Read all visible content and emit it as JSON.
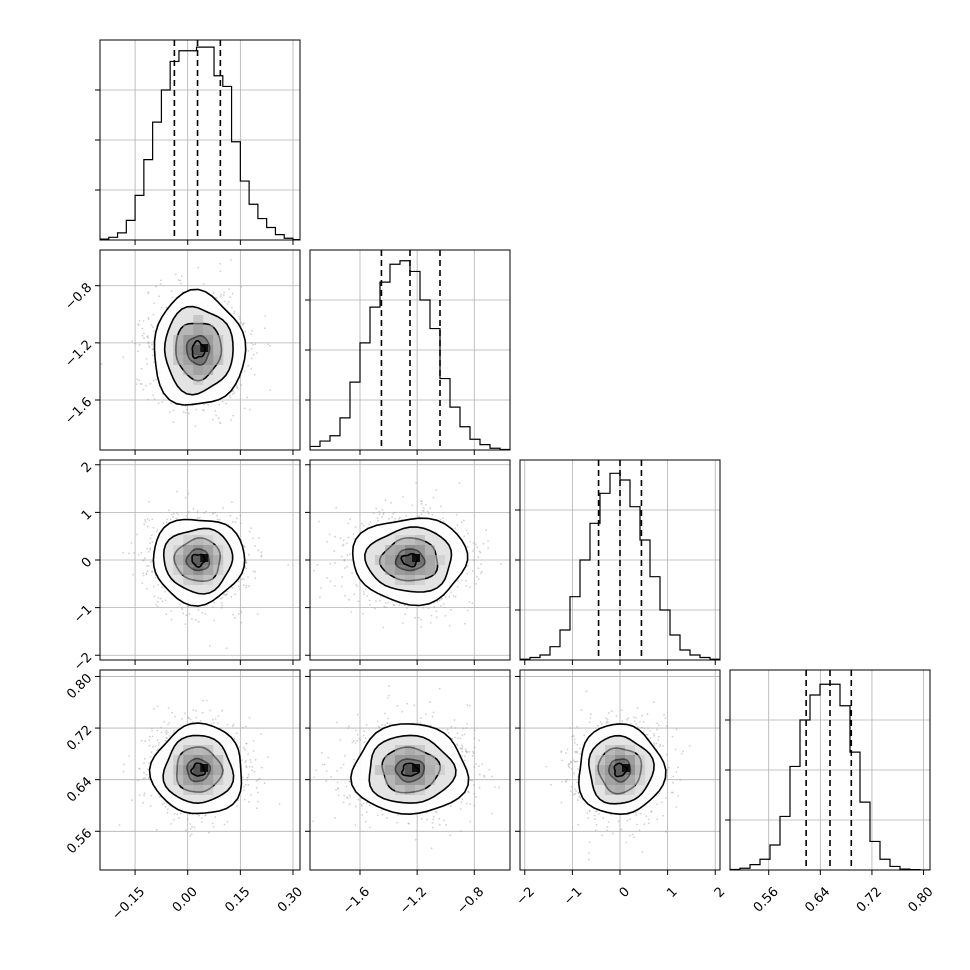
{
  "figure": {
    "type": "corner-plot",
    "grid_color": "#b0b0b0",
    "hist_color": "#000000",
    "scatter_color": "#9a9a9a",
    "contour_color": "#000000",
    "quantile_line": "dashed"
  },
  "chart_data": [
    {
      "type": "histogram",
      "panel": "diag-0",
      "param_index": 0,
      "xlim": [
        -0.25,
        0.32
      ],
      "xticks": [
        -0.15,
        0.0,
        0.15,
        0.3
      ],
      "xtick_labels": [
        "",
        "",
        "",
        ""
      ],
      "bin_edges": [
        -0.25,
        -0.225,
        -0.2,
        -0.175,
        -0.15,
        -0.125,
        -0.1,
        -0.075,
        -0.05,
        -0.025,
        0.0,
        0.025,
        0.05,
        0.075,
        0.1,
        0.125,
        0.15,
        0.175,
        0.2,
        0.225,
        0.25,
        0.275,
        0.3,
        0.32
      ],
      "counts": [
        0.5,
        1.5,
        4,
        11,
        25,
        45,
        66,
        84,
        100,
        106,
        106,
        108,
        108,
        92,
        86,
        55,
        33,
        20,
        12,
        7,
        3,
        1,
        0.2
      ],
      "ylim": [
        0,
        112
      ],
      "quantiles": [
        -0.038,
        0.028,
        0.093
      ],
      "grid": true
    },
    {
      "type": "scatter-contour",
      "panel": "row1-col0",
      "x_param": 0,
      "y_param": 1,
      "xlim": [
        -0.25,
        0.32
      ],
      "ylim": [
        -1.95,
        -0.55
      ],
      "xticks": [
        -0.15,
        0.0,
        0.15,
        0.3
      ],
      "xtick_labels": [
        "",
        "",
        "",
        ""
      ],
      "yticks": [
        -0.8,
        -1.2,
        -1.6
      ],
      "ytick_labels": [
        "−0.8",
        "−1.2",
        "−1.6"
      ],
      "mean": [
        0.03,
        -1.25
      ],
      "sigma": [
        0.065,
        0.2
      ],
      "grid": true
    },
    {
      "type": "histogram",
      "panel": "diag-1",
      "param_index": 1,
      "xlim": [
        -1.95,
        -0.55
      ],
      "xticks": [
        -1.6,
        -1.2,
        -0.8
      ],
      "xtick_labels": [
        "",
        "",
        ""
      ],
      "bin_edges": [
        -1.95,
        -1.88,
        -1.81,
        -1.74,
        -1.67,
        -1.6,
        -1.53,
        -1.46,
        -1.39,
        -1.32,
        -1.25,
        -1.18,
        -1.11,
        -1.04,
        -0.97,
        -0.9,
        -0.83,
        -0.76,
        -0.69,
        -0.62,
        -0.55
      ],
      "counts": [
        2,
        5,
        8,
        18,
        38,
        60,
        80,
        94,
        104,
        106,
        100,
        84,
        68,
        40,
        24,
        13,
        6,
        3,
        1,
        0.3
      ],
      "ylim": [
        0,
        112
      ],
      "quantiles": [
        -1.45,
        -1.25,
        -1.04
      ],
      "grid": true
    },
    {
      "type": "scatter-contour",
      "panel": "row2-col0",
      "x_param": 0,
      "y_param": 2,
      "xlim": [
        -0.25,
        0.32
      ],
      "ylim": [
        -2.1,
        2.1
      ],
      "xticks": [
        -0.15,
        0.0,
        0.15,
        0.3
      ],
      "xtick_labels": [
        "",
        "",
        "",
        ""
      ],
      "yticks": [
        2,
        1,
        0,
        -1,
        -2
      ],
      "ytick_labels": [
        "2",
        "1",
        "0",
        "−1",
        "−2"
      ],
      "mean": [
        0.03,
        0.0
      ],
      "sigma": [
        0.065,
        0.45
      ],
      "grid": true
    },
    {
      "type": "scatter-contour",
      "panel": "row2-col1",
      "x_param": 1,
      "y_param": 2,
      "xlim": [
        -1.95,
        -0.55
      ],
      "ylim": [
        -2.1,
        2.1
      ],
      "xticks": [
        -1.6,
        -1.2,
        -0.8
      ],
      "xtick_labels": [
        "",
        "",
        ""
      ],
      "yticks": [
        2,
        1,
        0,
        -1,
        -2
      ],
      "ytick_labels": [
        "",
        "",
        "",
        "",
        ""
      ],
      "mean": [
        -1.25,
        0.0
      ],
      "sigma": [
        0.2,
        0.45
      ],
      "grid": true
    },
    {
      "type": "histogram",
      "panel": "diag-2",
      "param_index": 2,
      "xlim": [
        -2.1,
        2.1
      ],
      "xticks": [
        -2,
        -1,
        0,
        1,
        2
      ],
      "xtick_labels": [
        "",
        "",
        "",
        "",
        ""
      ],
      "bin_edges": [
        -2.1,
        -1.89,
        -1.68,
        -1.47,
        -1.26,
        -1.05,
        -0.84,
        -0.63,
        -0.42,
        -0.21,
        0.0,
        0.21,
        0.42,
        0.63,
        0.84,
        1.05,
        1.26,
        1.47,
        1.68,
        1.89,
        2.1
      ],
      "counts": [
        0.5,
        1.5,
        3,
        8,
        18,
        38,
        60,
        82,
        100,
        112,
        108,
        92,
        72,
        50,
        30,
        15,
        6,
        3,
        1.5,
        0.5
      ],
      "ylim": [
        0,
        120
      ],
      "quantiles": [
        -0.45,
        0.0,
        0.45
      ],
      "grid": true
    },
    {
      "type": "scatter-contour",
      "panel": "row3-col0",
      "x_param": 0,
      "y_param": 3,
      "xlim": [
        -0.25,
        0.32
      ],
      "ylim": [
        0.5,
        0.81
      ],
      "xticks": [
        -0.15,
        0.0,
        0.15,
        0.3
      ],
      "xtick_labels": [
        "−0.15",
        "0.00",
        "0.15",
        "0.30"
      ],
      "yticks": [
        0.8,
        0.72,
        0.64,
        0.56
      ],
      "ytick_labels": [
        "0.80",
        "0.72",
        "0.64",
        "0.56"
      ],
      "mean": [
        0.03,
        0.655
      ],
      "sigma": [
        0.065,
        0.035
      ],
      "grid": true
    },
    {
      "type": "scatter-contour",
      "panel": "row3-col1",
      "x_param": 1,
      "y_param": 3,
      "xlim": [
        -1.95,
        -0.55
      ],
      "ylim": [
        0.5,
        0.81
      ],
      "xticks": [
        -1.6,
        -1.2,
        -0.8
      ],
      "xtick_labels": [
        "−1.6",
        "−1.2",
        "−0.8"
      ],
      "yticks": [
        0.8,
        0.72,
        0.64,
        0.56
      ],
      "ytick_labels": [
        "",
        "",
        "",
        ""
      ],
      "mean": [
        -1.25,
        0.655
      ],
      "sigma": [
        0.2,
        0.035
      ],
      "grid": true
    },
    {
      "type": "scatter-contour",
      "panel": "row3-col2",
      "x_param": 2,
      "y_param": 3,
      "xlim": [
        -2.1,
        2.1
      ],
      "ylim": [
        0.5,
        0.81
      ],
      "xticks": [
        -2,
        -1,
        0,
        1,
        2
      ],
      "xtick_labels": [
        "−2",
        "−1",
        "0",
        "1",
        "2"
      ],
      "yticks": [
        0.8,
        0.72,
        0.64,
        0.56
      ],
      "ytick_labels": [
        "",
        "",
        "",
        ""
      ],
      "mean": [
        0.0,
        0.655
      ],
      "sigma": [
        0.45,
        0.035
      ],
      "grid": true
    },
    {
      "type": "histogram",
      "panel": "diag-3",
      "param_index": 3,
      "xlim": [
        0.5,
        0.81
      ],
      "xticks": [
        0.56,
        0.64,
        0.72,
        0.8
      ],
      "xtick_labels": [
        "0.56",
        "0.64",
        "0.72",
        "0.80"
      ],
      "bin_edges": [
        0.5,
        0.5155,
        0.531,
        0.5465,
        0.562,
        0.5775,
        0.593,
        0.6085,
        0.624,
        0.6395,
        0.655,
        0.6705,
        0.686,
        0.7015,
        0.717,
        0.7325,
        0.748,
        0.7635,
        0.779,
        0.7945,
        0.81
      ],
      "counts": [
        0.3,
        1,
        3,
        6,
        14,
        30,
        58,
        84,
        98,
        104,
        104,
        92,
        66,
        38,
        16,
        6,
        2,
        0.5,
        0.2,
        0
      ],
      "ylim": [
        0,
        112
      ],
      "quantiles": [
        0.618,
        0.655,
        0.688
      ],
      "grid": true
    }
  ]
}
